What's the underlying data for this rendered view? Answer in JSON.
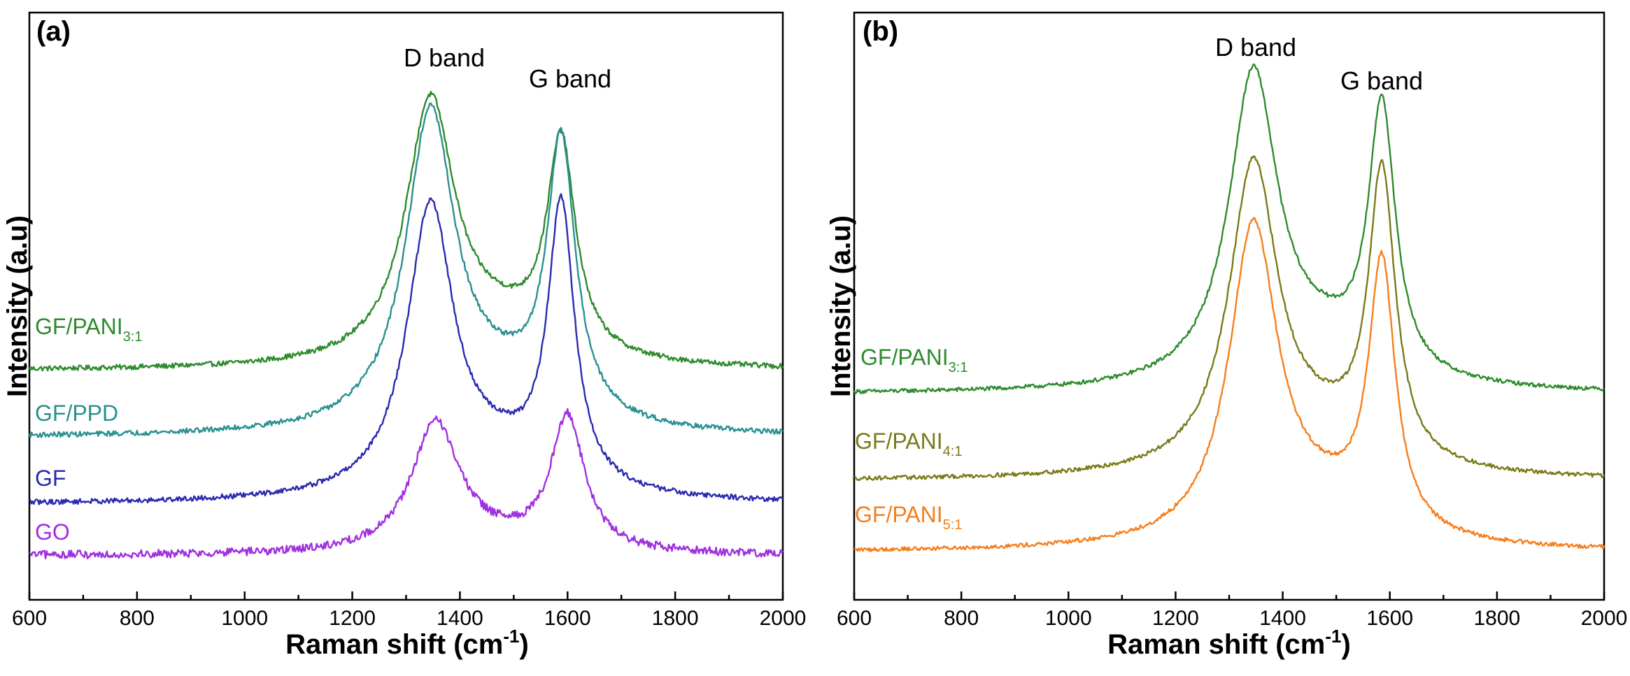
{
  "chart_data": [
    {
      "type": "line",
      "panel_label": "(a)",
      "xlabel": "Raman shift",
      "xlabel_unit": "cm",
      "xlabel_unit_exp": "-1",
      "ylabel": "Intensity (a.u)",
      "xlim": [
        600,
        2000
      ],
      "xticks": [
        "600",
        "800",
        "1000",
        "1200",
        "1400",
        "1600",
        "1800",
        "2000"
      ],
      "ylim": [
        0,
        10
      ],
      "annotations": [
        {
          "text": "D band",
          "x": 1345,
          "y": 9.5
        },
        {
          "text": "G band",
          "x": 1595,
          "y": 9.0
        }
      ],
      "series": [
        {
          "name": "GF/PANI",
          "subscript": "3:1",
          "color": "#2e8b2e",
          "base": 3.6,
          "d_center": 1345,
          "d_height": 5.0,
          "d_width": 55,
          "g_center": 1588,
          "g_height": 4.1,
          "g_width": 32,
          "shoulder": 1.1,
          "noise": 0.05
        },
        {
          "name": "GF/PPD",
          "subscript": "",
          "color": "#2a9090",
          "base": 2.3,
          "d_center": 1345,
          "d_height": 6.0,
          "d_width": 55,
          "g_center": 1588,
          "g_height": 5.3,
          "g_width": 32,
          "shoulder": 1.3,
          "noise": 0.05
        },
        {
          "name": "GF",
          "subscript": "",
          "color": "#2a2ab0",
          "base": 1.0,
          "d_center": 1345,
          "d_height": 5.5,
          "d_width": 52,
          "g_center": 1588,
          "g_height": 5.4,
          "g_width": 30,
          "shoulder": 1.2,
          "noise": 0.05
        },
        {
          "name": "GO",
          "subscript": "",
          "color": "#a030e0",
          "base": 0.0,
          "d_center": 1355,
          "d_height": 2.5,
          "d_width": 55,
          "g_center": 1600,
          "g_height": 2.6,
          "g_width": 38,
          "shoulder": 0.25,
          "noise": 0.08
        }
      ]
    },
    {
      "type": "line",
      "panel_label": "(b)",
      "xlabel": "Raman shift",
      "xlabel_unit": "cm",
      "xlabel_unit_exp": "-1",
      "ylabel": "Intensity (a.u)",
      "xlim": [
        600,
        2000
      ],
      "xticks": [
        "600",
        "800",
        "1000",
        "1200",
        "1400",
        "1600",
        "1800",
        "2000"
      ],
      "ylim": [
        0,
        10
      ],
      "annotations": [
        {
          "text": "D band",
          "x": 1345,
          "y": 9.6
        },
        {
          "text": "G band",
          "x": 1590,
          "y": 9.2
        }
      ],
      "series": [
        {
          "name": "GF/PANI",
          "subscript": "3:1",
          "color": "#2e8b2e",
          "base": 3.1,
          "d_center": 1345,
          "d_height": 6.0,
          "d_width": 55,
          "g_center": 1585,
          "g_height": 5.2,
          "g_width": 30,
          "shoulder": 1.2,
          "noise": 0.04
        },
        {
          "name": "GF/PANI",
          "subscript": "4:1",
          "color": "#7a7a1a",
          "base": 1.4,
          "d_center": 1345,
          "d_height": 5.9,
          "d_width": 55,
          "g_center": 1585,
          "g_height": 5.6,
          "g_width": 30,
          "shoulder": 1.2,
          "noise": 0.04
        },
        {
          "name": "GF/PANI",
          "subscript": "5:1",
          "color": "#f57f1d",
          "base": 0.0,
          "d_center": 1345,
          "d_height": 6.1,
          "d_width": 55,
          "g_center": 1585,
          "g_height": 5.2,
          "g_width": 30,
          "shoulder": 1.2,
          "noise": 0.04
        }
      ]
    }
  ]
}
